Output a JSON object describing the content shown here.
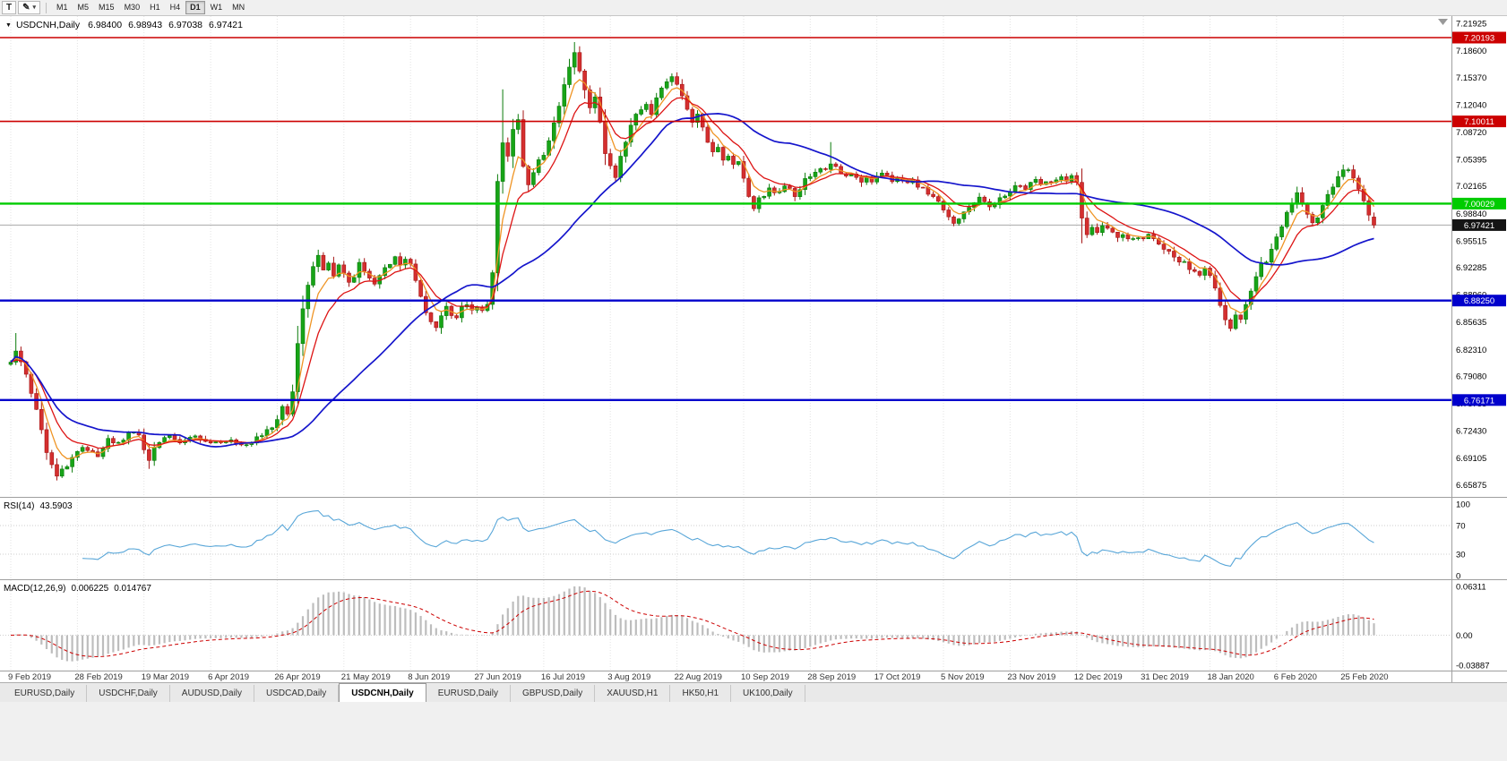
{
  "toolbar": {
    "text_tool_label": "T",
    "timeframes": [
      {
        "label": "M1"
      },
      {
        "label": "M5"
      },
      {
        "label": "M15"
      },
      {
        "label": "M30"
      },
      {
        "label": "H1"
      },
      {
        "label": "H4"
      },
      {
        "label": "D1"
      },
      {
        "label": "W1"
      },
      {
        "label": "MN"
      }
    ],
    "active_timeframe": "D1"
  },
  "icons": {
    "dropdown_triangle": "▼",
    "caret_down": "▾",
    "pen_tool": "✎"
  },
  "chart": {
    "title": {
      "symbol": "USDCNH,Daily",
      "open": "6.98400",
      "high": "6.98943",
      "low": "6.97038",
      "close": "6.97421"
    },
    "price_axis_labels": [
      "7.21925",
      "7.18600",
      "7.15370",
      "7.12040",
      "7.08720",
      "7.05395",
      "7.02165",
      "6.98840",
      "6.95515",
      "6.92285",
      "6.88960",
      "6.85635",
      "6.82310",
      "6.79080",
      "6.75755",
      "6.72430",
      "6.69105",
      "6.65875"
    ],
    "hlines": [
      {
        "label": "7.20193",
        "value": 7.20193,
        "color": "#cc0000",
        "width": 1.6
      },
      {
        "label": "7.10011",
        "value": 7.10011,
        "color": "#cc0000",
        "width": 1.6
      },
      {
        "label": "7.00029",
        "value": 7.00029,
        "color": "#00cc00",
        "width": 2.4
      },
      {
        "label": "6.88250",
        "value": 6.8825,
        "color": "#0000cc",
        "width": 2.4
      },
      {
        "label": "6.76171",
        "value": 6.76171,
        "color": "#0000cc",
        "width": 2.4
      }
    ],
    "current_price": {
      "label": "6.97421",
      "value": 6.97421,
      "line_color": "#a8a8a8",
      "badge_color": "#141414"
    },
    "date_labels": [
      "9 Feb 2019",
      "28 Feb 2019",
      "19 Mar 2019",
      "6 Apr 2019",
      "26 Apr 2019",
      "21 May 2019",
      "8 Jun 2019",
      "27 Jun 2019",
      "16 Jul 2019",
      "3 Aug 2019",
      "22 Aug 2019",
      "10 Sep 2019",
      "28 Sep 2019",
      "17 Oct 2019",
      "5 Nov 2019",
      "23 Nov 2019",
      "12 Dec 2019",
      "31 Dec 2019",
      "18 Jan 2020",
      "6 Feb 2020",
      "25 Feb 2020"
    ]
  },
  "rsi": {
    "name": "RSI(14)",
    "value": "43.5903",
    "axis_labels": [
      "100",
      "70",
      "30",
      "0"
    ],
    "levels": [
      70,
      30
    ]
  },
  "macd": {
    "name": "MACD(12,26,9)",
    "main_value": "0.006225",
    "signal_value": "0.014767",
    "axis_max_label": "0.06311",
    "axis_zero_label": "0.00",
    "axis_min_label": "-0.03887"
  },
  "tabs": [
    {
      "label": "EURUSD,Daily",
      "active": false
    },
    {
      "label": "USDCHF,Daily",
      "active": false
    },
    {
      "label": "AUDUSD,Daily",
      "active": false
    },
    {
      "label": "USDCAD,Daily",
      "active": false
    },
    {
      "label": "USDCNH,Daily",
      "active": true
    },
    {
      "label": "EURUSD,Daily",
      "active": false
    },
    {
      "label": "GBPUSD,Daily",
      "active": false
    },
    {
      "label": "XAUUSD,H1",
      "active": false
    },
    {
      "label": "HK50,H1",
      "active": false
    },
    {
      "label": "UK100,Daily",
      "active": false
    }
  ],
  "chart_data": {
    "type": "candlestick",
    "symbol": "USDCNH",
    "timeframe": "Daily",
    "num_candles": 267,
    "candles_per_label": 13,
    "price_range": [
      6.644,
      7.228
    ],
    "macd_range": [
      -0.03887,
      0.06311
    ],
    "rsi_period": 14,
    "macd_params": [
      12,
      26,
      9
    ],
    "last_candle": {
      "open": 6.984,
      "high": 6.98943,
      "low": 6.97038,
      "close": 6.97421
    },
    "seed": 20200306,
    "colors": {
      "up": {
        "fill": "#17a417",
        "stroke": "#0a7c0a"
      },
      "down": {
        "fill": "#d42f2f",
        "stroke": "#a51414"
      },
      "rsi": "#58a6d8",
      "macd_histogram": "#bdbdbd",
      "macd_signal": "#cc0000",
      "grid": "#e3e3e3"
    },
    "moving_averages": [
      {
        "type": "ema",
        "period": 5,
        "color": "#ef9424",
        "width": 1.3
      },
      {
        "type": "ema",
        "period": 10,
        "color": "#dd1414",
        "width": 1.3
      },
      {
        "type": "sma",
        "period": 34,
        "color": "#1515cc",
        "width": 1.7
      }
    ],
    "price_anchors": [
      [
        0,
        6.805
      ],
      [
        1,
        6.822
      ],
      [
        3,
        6.795
      ],
      [
        5,
        6.748
      ],
      [
        7,
        6.7
      ],
      [
        9,
        6.672
      ],
      [
        11,
        6.682
      ],
      [
        13,
        6.7
      ],
      [
        15,
        6.703
      ],
      [
        17,
        6.694
      ],
      [
        19,
        6.714
      ],
      [
        21,
        6.708
      ],
      [
        23,
        6.722
      ],
      [
        25,
        6.718
      ],
      [
        26,
        6.704
      ],
      [
        27,
        6.69
      ],
      [
        28,
        6.703
      ],
      [
        29,
        6.712
      ],
      [
        31,
        6.718
      ],
      [
        33,
        6.711
      ],
      [
        35,
        6.719
      ],
      [
        37,
        6.712
      ],
      [
        39,
        6.71
      ],
      [
        41,
        6.709
      ],
      [
        43,
        6.714
      ],
      [
        45,
        6.708
      ],
      [
        47,
        6.712
      ],
      [
        49,
        6.719
      ],
      [
        51,
        6.728
      ],
      [
        52,
        6.738
      ],
      [
        53,
        6.752
      ],
      [
        54,
        6.744
      ],
      [
        55,
        6.772
      ],
      [
        56,
        6.83
      ],
      [
        57,
        6.872
      ],
      [
        58,
        6.904
      ],
      [
        59,
        6.926
      ],
      [
        60,
        6.937
      ],
      [
        61,
        6.919
      ],
      [
        62,
        6.929
      ],
      [
        63,
        6.911
      ],
      [
        64,
        6.923
      ],
      [
        65,
        6.917
      ],
      [
        66,
        6.904
      ],
      [
        67,
        6.913
      ],
      [
        68,
        6.927
      ],
      [
        69,
        6.919
      ],
      [
        70,
        6.909
      ],
      [
        71,
        6.905
      ],
      [
        72,
        6.913
      ],
      [
        73,
        6.923
      ],
      [
        74,
        6.929
      ],
      [
        75,
        6.936
      ],
      [
        76,
        6.928
      ],
      [
        77,
        6.933
      ],
      [
        78,
        6.926
      ],
      [
        79,
        6.908
      ],
      [
        80,
        6.887
      ],
      [
        81,
        6.867
      ],
      [
        82,
        6.855
      ],
      [
        83,
        6.849
      ],
      [
        84,
        6.865
      ],
      [
        85,
        6.877
      ],
      [
        86,
        6.867
      ],
      [
        87,
        6.859
      ],
      [
        88,
        6.873
      ],
      [
        89,
        6.878
      ],
      [
        90,
        6.87
      ],
      [
        91,
        6.874
      ],
      [
        92,
        6.871
      ],
      [
        93,
        6.879
      ],
      [
        94,
        6.918
      ],
      [
        95,
        7.028
      ],
      [
        96,
        7.074
      ],
      [
        97,
        7.058
      ],
      [
        98,
        7.088
      ],
      [
        99,
        7.103
      ],
      [
        100,
        7.044
      ],
      [
        101,
        7.021
      ],
      [
        102,
        7.037
      ],
      [
        103,
        7.051
      ],
      [
        104,
        7.057
      ],
      [
        105,
        7.077
      ],
      [
        106,
        7.097
      ],
      [
        107,
        7.119
      ],
      [
        108,
        7.147
      ],
      [
        109,
        7.167
      ],
      [
        110,
        7.182
      ],
      [
        111,
        7.159
      ],
      [
        112,
        7.141
      ],
      [
        113,
        7.119
      ],
      [
        114,
        7.129
      ],
      [
        115,
        7.097
      ],
      [
        116,
        7.061
      ],
      [
        117,
        7.047
      ],
      [
        118,
        7.031
      ],
      [
        119,
        7.057
      ],
      [
        120,
        7.077
      ],
      [
        121,
        7.097
      ],
      [
        122,
        7.107
      ],
      [
        123,
        7.117
      ],
      [
        124,
        7.123
      ],
      [
        125,
        7.111
      ],
      [
        126,
        7.127
      ],
      [
        127,
        7.139
      ],
      [
        128,
        7.147
      ],
      [
        129,
        7.157
      ],
      [
        130,
        7.147
      ],
      [
        131,
        7.131
      ],
      [
        132,
        7.117
      ],
      [
        133,
        7.101
      ],
      [
        134,
        7.111
      ],
      [
        135,
        7.091
      ],
      [
        136,
        7.075
      ],
      [
        137,
        7.061
      ],
      [
        138,
        7.069
      ],
      [
        139,
        7.051
      ],
      [
        140,
        7.059
      ],
      [
        141,
        7.045
      ],
      [
        142,
        7.049
      ],
      [
        143,
        7.029
      ],
      [
        144,
        7.009
      ],
      [
        145,
        6.995
      ],
      [
        146,
        7.005
      ],
      [
        147,
        7.011
      ],
      [
        148,
        7.019
      ],
      [
        149,
        7.011
      ],
      [
        150,
        7.015
      ],
      [
        151,
        7.023
      ],
      [
        152,
        7.019
      ],
      [
        153,
        7.011
      ],
      [
        154,
        7.019
      ],
      [
        155,
        7.029
      ],
      [
        156,
        7.033
      ],
      [
        157,
        7.039
      ],
      [
        158,
        7.043
      ],
      [
        159,
        7.039
      ],
      [
        160,
        7.047
      ],
      [
        161,
        7.043
      ],
      [
        162,
        7.039
      ],
      [
        163,
        7.035
      ],
      [
        164,
        7.039
      ],
      [
        165,
        7.034
      ],
      [
        166,
        7.029
      ],
      [
        167,
        7.034
      ],
      [
        168,
        7.029
      ],
      [
        169,
        7.033
      ],
      [
        170,
        7.039
      ],
      [
        171,
        7.035
      ],
      [
        172,
        7.029
      ],
      [
        173,
        7.033
      ],
      [
        174,
        7.029
      ],
      [
        175,
        7.025
      ],
      [
        176,
        7.029
      ],
      [
        177,
        7.023
      ],
      [
        178,
        7.019
      ],
      [
        179,
        7.013
      ],
      [
        180,
        7.007
      ],
      [
        181,
        7.001
      ],
      [
        182,
        6.995
      ],
      [
        183,
        6.984
      ],
      [
        184,
        6.975
      ],
      [
        185,
        6.981
      ],
      [
        186,
        6.989
      ],
      [
        187,
        6.998
      ],
      [
        188,
        7.003
      ],
      [
        189,
        7.009
      ],
      [
        190,
        7.003
      ],
      [
        191,
        6.995
      ],
      [
        192,
        6.999
      ],
      [
        193,
        7.005
      ],
      [
        194,
        7.009
      ],
      [
        195,
        7.013
      ],
      [
        196,
        7.019
      ],
      [
        197,
        7.023
      ],
      [
        198,
        7.019
      ],
      [
        199,
        7.025
      ],
      [
        200,
        7.029
      ],
      [
        201,
        7.025
      ],
      [
        202,
        7.029
      ],
      [
        203,
        7.025
      ],
      [
        204,
        7.029
      ],
      [
        205,
        7.033
      ],
      [
        206,
        7.029
      ],
      [
        207,
        7.033
      ],
      [
        208,
        7.029
      ],
      [
        209,
        6.984
      ],
      [
        210,
        6.961
      ],
      [
        211,
        6.971
      ],
      [
        212,
        6.965
      ],
      [
        213,
        6.975
      ],
      [
        214,
        6.969
      ],
      [
        215,
        6.963
      ],
      [
        216,
        6.959
      ],
      [
        217,
        6.965
      ],
      [
        218,
        6.959
      ],
      [
        219,
        6.955
      ],
      [
        220,
        6.959
      ],
      [
        221,
        6.957
      ],
      [
        222,
        6.963
      ],
      [
        223,
        6.957
      ],
      [
        224,
        6.951
      ],
      [
        225,
        6.947
      ],
      [
        226,
        6.941
      ],
      [
        227,
        6.937
      ],
      [
        228,
        6.931
      ],
      [
        229,
        6.927
      ],
      [
        230,
        6.923
      ],
      [
        231,
        6.917
      ],
      [
        232,
        6.913
      ],
      [
        233,
        6.919
      ],
      [
        234,
        6.911
      ],
      [
        235,
        6.897
      ],
      [
        236,
        6.877
      ],
      [
        237,
        6.859
      ],
      [
        238,
        6.851
      ],
      [
        239,
        6.867
      ],
      [
        240,
        6.861
      ],
      [
        241,
        6.879
      ],
      [
        242,
        6.895
      ],
      [
        243,
        6.911
      ],
      [
        244,
        6.925
      ],
      [
        245,
        6.931
      ],
      [
        246,
        6.945
      ],
      [
        247,
        6.957
      ],
      [
        248,
        6.971
      ],
      [
        249,
        6.987
      ],
      [
        250,
        6.999
      ],
      [
        251,
        7.013
      ],
      [
        252,
        6.999
      ],
      [
        253,
        6.985
      ],
      [
        254,
        6.975
      ],
      [
        255,
        6.985
      ],
      [
        256,
        6.995
      ],
      [
        257,
        7.009
      ],
      [
        258,
        7.023
      ],
      [
        259,
        7.035
      ],
      [
        260,
        7.043
      ],
      [
        261,
        7.039
      ],
      [
        262,
        7.029
      ],
      [
        263,
        7.017
      ],
      [
        264,
        7.001
      ],
      [
        265,
        6.987
      ],
      [
        266,
        6.974
      ]
    ],
    "forced_wicks": [
      {
        "i": 1,
        "high": 6.843
      },
      {
        "i": 9,
        "low": 6.664
      },
      {
        "i": 27,
        "low": 6.678
      },
      {
        "i": 96,
        "high": 7.139
      },
      {
        "i": 110,
        "high": 7.1965
      },
      {
        "i": 160,
        "high": 7.075
      },
      {
        "i": 209,
        "low": 6.952
      },
      {
        "i": 238,
        "low": 6.845
      }
    ]
  }
}
